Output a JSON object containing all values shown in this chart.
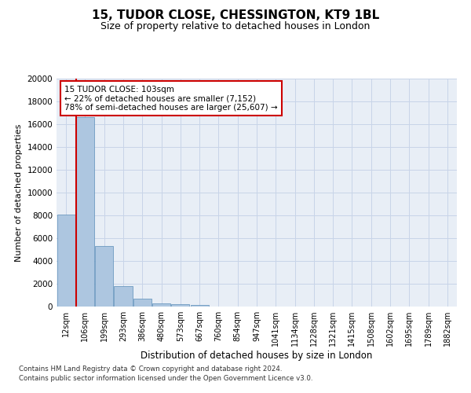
{
  "title1": "15, TUDOR CLOSE, CHESSINGTON, KT9 1BL",
  "title2": "Size of property relative to detached houses in London",
  "xlabel": "Distribution of detached houses by size in London",
  "ylabel": "Number of detached properties",
  "categories": [
    "12sqm",
    "106sqm",
    "199sqm",
    "293sqm",
    "386sqm",
    "480sqm",
    "573sqm",
    "667sqm",
    "760sqm",
    "854sqm",
    "947sqm",
    "1041sqm",
    "1134sqm",
    "1228sqm",
    "1321sqm",
    "1415sqm",
    "1508sqm",
    "1602sqm",
    "1695sqm",
    "1789sqm",
    "1882sqm"
  ],
  "values": [
    8100,
    16600,
    5300,
    1800,
    700,
    280,
    175,
    110,
    0,
    0,
    0,
    0,
    0,
    0,
    0,
    0,
    0,
    0,
    0,
    0,
    0
  ],
  "bar_color": "#adc6e0",
  "bar_edge_color": "#5b8db8",
  "vline_color": "#cc0000",
  "annotation_text": "15 TUDOR CLOSE: 103sqm\n← 22% of detached houses are smaller (7,152)\n78% of semi-detached houses are larger (25,607) →",
  "annotation_box_color": "#ffffff",
  "annotation_box_edge": "#cc0000",
  "ylim": [
    0,
    20000
  ],
  "yticks": [
    0,
    2000,
    4000,
    6000,
    8000,
    10000,
    12000,
    14000,
    16000,
    18000,
    20000
  ],
  "grid_color": "#c8d4e8",
  "background_color": "#e8eef6",
  "footer1": "Contains HM Land Registry data © Crown copyright and database right 2024.",
  "footer2": "Contains public sector information licensed under the Open Government Licence v3.0."
}
